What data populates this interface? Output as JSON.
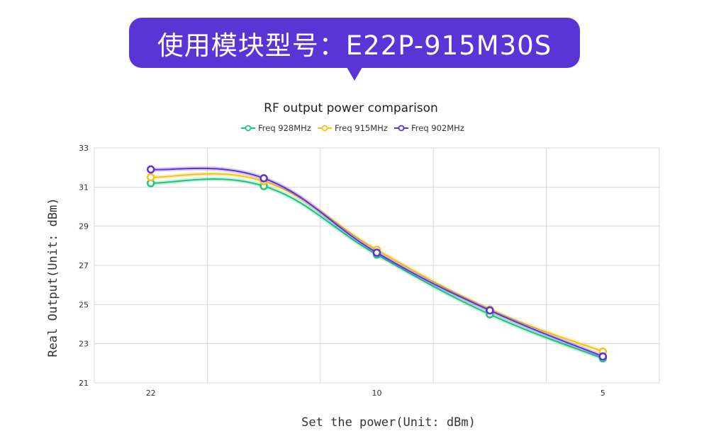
{
  "banner": {
    "text": "使用模块型号：E22P-915M30S",
    "color": "#5a35d6"
  },
  "chart_data": {
    "type": "line",
    "title": "RF output power comparison",
    "xlabel": "Set the power(Unit: dBm)",
    "ylabel": "Real Output(Unit: dBm)",
    "categories": [
      "22",
      "",
      "10",
      "",
      "5"
    ],
    "ylim": [
      21,
      33
    ],
    "yticks": [
      "21",
      "23",
      "25",
      "27",
      "29",
      "31",
      "33"
    ],
    "grid": true,
    "smooth": true,
    "legend_position": "top-center",
    "series": [
      {
        "name": "Freq 928MHz",
        "color": "#1fc47a",
        "values": [
          31.2,
          31.05,
          27.55,
          24.5,
          22.25
        ]
      },
      {
        "name": "Freq 915MHz",
        "color": "#f5c218",
        "values": [
          31.5,
          31.3,
          27.8,
          24.75,
          22.6
        ]
      },
      {
        "name": "Freq 902MHz",
        "color": "#5a35d6",
        "values": [
          31.9,
          31.45,
          27.65,
          24.7,
          22.35
        ]
      }
    ]
  }
}
